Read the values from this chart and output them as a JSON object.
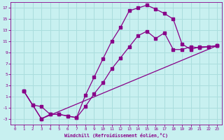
{
  "xlabel": "Windchill (Refroidissement éolien,°C)",
  "bg_color": "#c8f0f0",
  "line_color": "#880088",
  "grid_color": "#aadddd",
  "xlim": [
    -0.5,
    23.5
  ],
  "ylim": [
    -4,
    18
  ],
  "xticks": [
    0,
    1,
    2,
    3,
    4,
    5,
    6,
    7,
    8,
    9,
    10,
    11,
    12,
    13,
    14,
    15,
    16,
    17,
    18,
    19,
    20,
    21,
    22,
    23
  ],
  "yticks": [
    -3,
    -1,
    1,
    3,
    5,
    7,
    9,
    11,
    13,
    15,
    17
  ],
  "line1_x": [
    1,
    2,
    3,
    4,
    5,
    6,
    7,
    8,
    9,
    10,
    11,
    12,
    13,
    14,
    15,
    16,
    17,
    18,
    19,
    20,
    21,
    22,
    23
  ],
  "line1_y": [
    2,
    -0.5,
    -3,
    -2.2,
    -2.2,
    -2.5,
    -2.8,
    1.2,
    4.5,
    7.8,
    11,
    13.5,
    16.5,
    17,
    17.5,
    16.8,
    16,
    15,
    10.5,
    9.5,
    10,
    10,
    10.2
  ],
  "line2_x": [
    1,
    2,
    3,
    4,
    5,
    6,
    7,
    8,
    9,
    10,
    11,
    12,
    13,
    14,
    15,
    16,
    17,
    18,
    19,
    20,
    21,
    22,
    23
  ],
  "line2_y": [
    2,
    -0.5,
    -0.8,
    -2.2,
    -2.2,
    -2.5,
    -2.8,
    -0.8,
    1.5,
    3.5,
    6.0,
    8.0,
    10.0,
    12.0,
    12.8,
    11.5,
    12.5,
    9.5,
    9.5,
    10.0,
    9.8,
    10.0,
    10.2
  ],
  "line3_x": [
    1,
    3,
    23
  ],
  "line3_y": [
    2,
    -3,
    10.2
  ]
}
